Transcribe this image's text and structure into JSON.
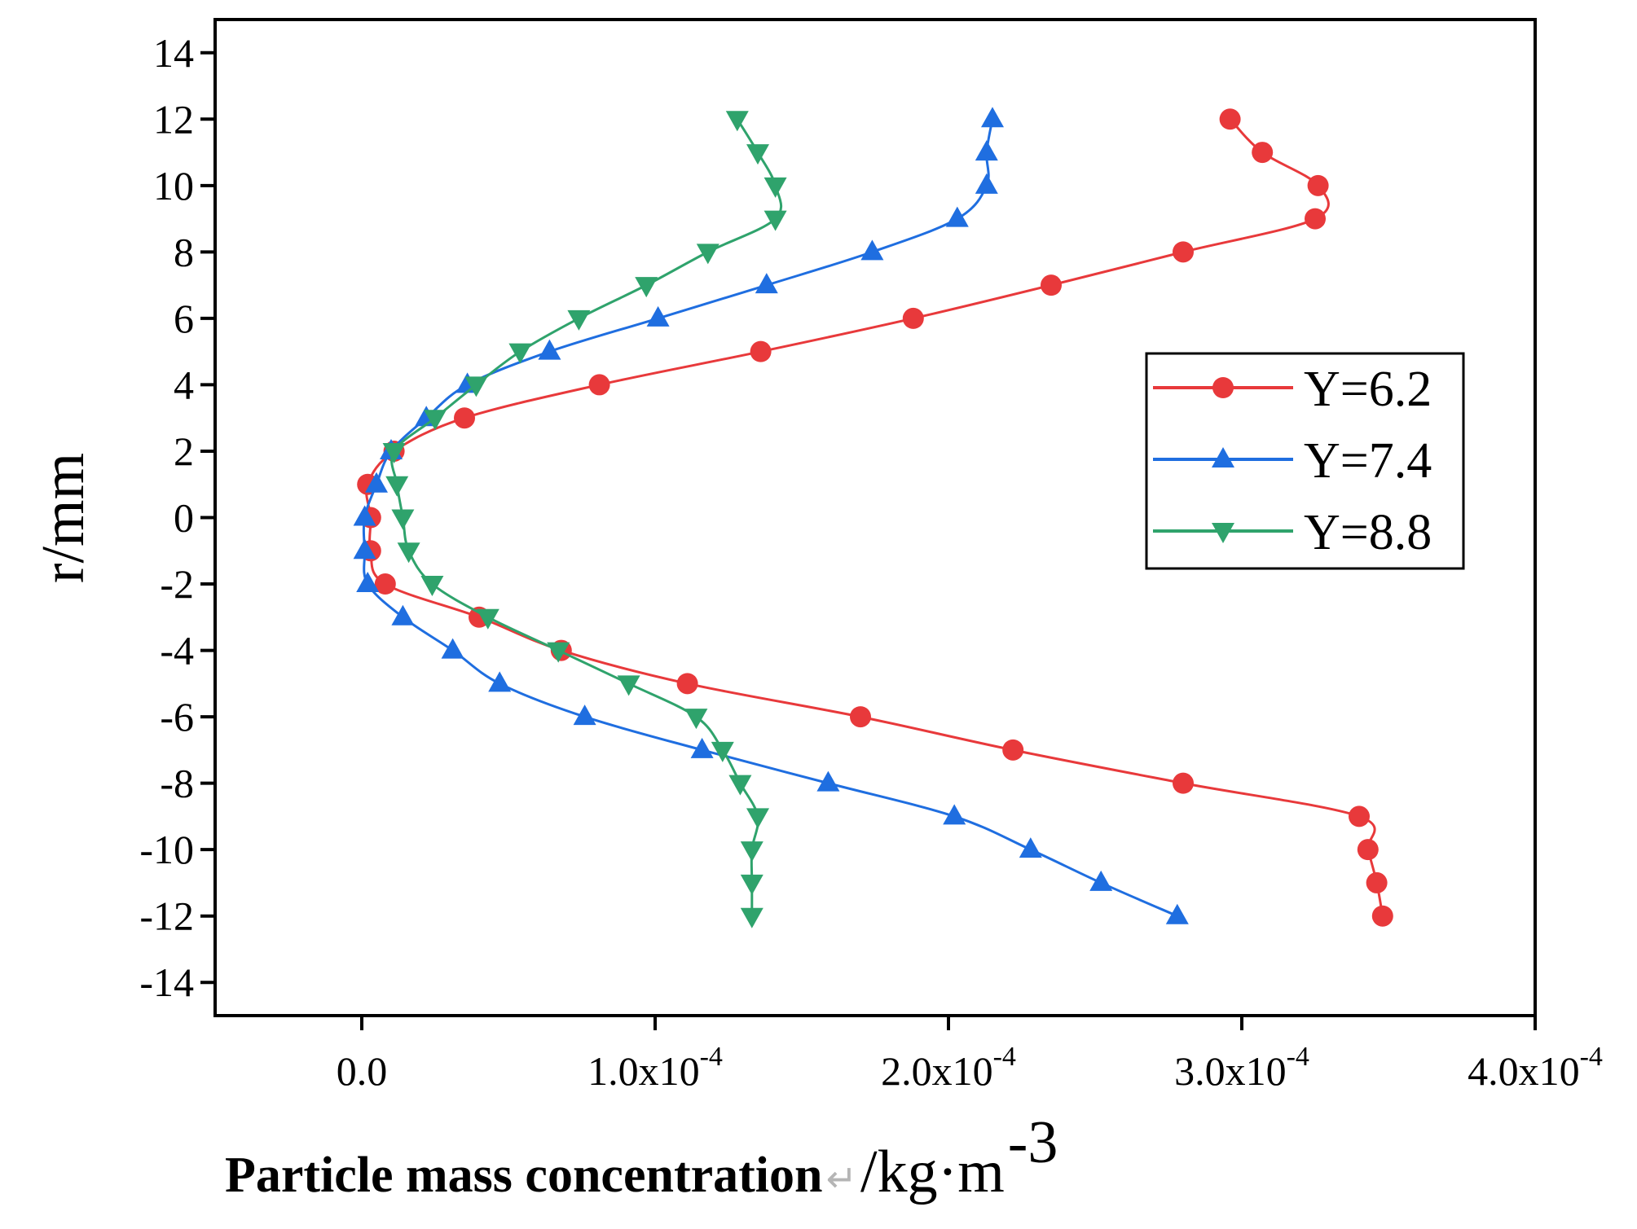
{
  "chart_data": {
    "type": "line",
    "title": "",
    "xlabel": {
      "main": "Particle mass concentration",
      "mark": "↵",
      "unit_base": "/kg·m",
      "unit_exp": "-3"
    },
    "ylabel": "r/mm",
    "xlim": [
      -5e-05,
      0.0004
    ],
    "ylim": [
      -15,
      15
    ],
    "x_ticks": [
      {
        "value": 0,
        "mantissa": "0.0",
        "exp": ""
      },
      {
        "value": 0.0001,
        "mantissa": "1.0x10",
        "exp": "-4"
      },
      {
        "value": 0.0002,
        "mantissa": "2.0x10",
        "exp": "-4"
      },
      {
        "value": 0.0003,
        "mantissa": "3.0x10",
        "exp": "-4"
      },
      {
        "value": 0.0004,
        "mantissa": "4.0x10",
        "exp": "-4"
      }
    ],
    "y_ticks": [
      {
        "value": 14,
        "label": "14"
      },
      {
        "value": 12,
        "label": "12"
      },
      {
        "value": 10,
        "label": "10"
      },
      {
        "value": 8,
        "label": "8"
      },
      {
        "value": 6,
        "label": "6"
      },
      {
        "value": 4,
        "label": "4"
      },
      {
        "value": 2,
        "label": "2"
      },
      {
        "value": 0,
        "label": "0"
      },
      {
        "value": -2,
        "label": "-2"
      },
      {
        "value": -4,
        "label": "-4"
      },
      {
        "value": -6,
        "label": "-6"
      },
      {
        "value": -8,
        "label": "-8"
      },
      {
        "value": -10,
        "label": "-10"
      },
      {
        "value": -12,
        "label": "-12"
      },
      {
        "value": -14,
        "label": "-14"
      }
    ],
    "grid": false,
    "legend_position": "right",
    "series": [
      {
        "name": "Y=6.2",
        "color": "#e8393b",
        "marker": "circle",
        "points": [
          [
            0.000296,
            12
          ],
          [
            0.000307,
            11
          ],
          [
            0.000326,
            10
          ],
          [
            0.000325,
            9
          ],
          [
            0.00028,
            8
          ],
          [
            0.000235,
            7
          ],
          [
            0.000188,
            6
          ],
          [
            0.000136,
            5
          ],
          [
            8.1e-05,
            4
          ],
          [
            3.5e-05,
            3
          ],
          [
            1.1e-05,
            2
          ],
          [
            2e-06,
            1
          ],
          [
            3e-06,
            0
          ],
          [
            3e-06,
            -1
          ],
          [
            8e-06,
            -2
          ],
          [
            4e-05,
            -3
          ],
          [
            6.8e-05,
            -4
          ],
          [
            0.000111,
            -5
          ],
          [
            0.00017,
            -6
          ],
          [
            0.000222,
            -7
          ],
          [
            0.00028,
            -8
          ],
          [
            0.00034,
            -9
          ],
          [
            0.000343,
            -10
          ],
          [
            0.000346,
            -11
          ],
          [
            0.000348,
            -12
          ]
        ]
      },
      {
        "name": "Y=7.4",
        "color": "#1f6ee0",
        "marker": "triangle-up",
        "points": [
          [
            0.000215,
            12
          ],
          [
            0.000213,
            11
          ],
          [
            0.000213,
            10
          ],
          [
            0.000203,
            9
          ],
          [
            0.000174,
            8
          ],
          [
            0.000138,
            7
          ],
          [
            0.000101,
            6
          ],
          [
            6.4e-05,
            5
          ],
          [
            3.6e-05,
            4
          ],
          [
            2.2e-05,
            3
          ],
          [
            1e-05,
            2
          ],
          [
            5e-06,
            1
          ],
          [
            1e-06,
            0
          ],
          [
            1e-06,
            -1
          ],
          [
            2e-06,
            -2
          ],
          [
            1.4e-05,
            -3
          ],
          [
            3.1e-05,
            -4
          ],
          [
            4.7e-05,
            -5
          ],
          [
            7.6e-05,
            -6
          ],
          [
            0.000116,
            -7
          ],
          [
            0.000159,
            -8
          ],
          [
            0.000202,
            -9
          ],
          [
            0.000228,
            -10
          ],
          [
            0.000252,
            -11
          ],
          [
            0.000278,
            -12
          ]
        ]
      },
      {
        "name": "Y=8.8",
        "color": "#2fa36c",
        "marker": "triangle-down",
        "points": [
          [
            0.000128,
            12
          ],
          [
            0.000135,
            11
          ],
          [
            0.000141,
            10
          ],
          [
            0.000141,
            9
          ],
          [
            0.000118,
            8
          ],
          [
            9.7e-05,
            7
          ],
          [
            7.4e-05,
            6
          ],
          [
            5.4e-05,
            5
          ],
          [
            3.9e-05,
            4
          ],
          [
            2.5e-05,
            3
          ],
          [
            1.1e-05,
            2
          ],
          [
            1.2e-05,
            1
          ],
          [
            1.4e-05,
            0
          ],
          [
            1.6e-05,
            -1
          ],
          [
            2.4e-05,
            -2
          ],
          [
            4.3e-05,
            -3
          ],
          [
            6.7e-05,
            -4
          ],
          [
            9.1e-05,
            -5
          ],
          [
            0.000114,
            -6
          ],
          [
            0.000123,
            -7
          ],
          [
            0.000129,
            -8
          ],
          [
            0.000135,
            -9
          ],
          [
            0.000133,
            -10
          ],
          [
            0.000133,
            -11
          ],
          [
            0.000133,
            -12
          ]
        ]
      }
    ]
  }
}
